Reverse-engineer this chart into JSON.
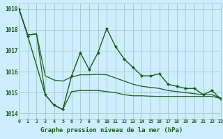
{
  "title": "Graphe pression niveau de la mer (hPa)",
  "bg_color": "#cceeff",
  "grid_color": "#aacccc",
  "line_color": "#1a5c1a",
  "xlim": [
    0,
    23
  ],
  "ylim": [
    1013.75,
    1019.25
  ],
  "yticks": [
    1014,
    1015,
    1016,
    1017,
    1018,
    1019
  ],
  "main_x": [
    0,
    1,
    3,
    4,
    5,
    6,
    7,
    8,
    9,
    10,
    11,
    12,
    13,
    14,
    15,
    16,
    17,
    18,
    19,
    20,
    21,
    22,
    23
  ],
  "main_y": [
    1019.0,
    1017.7,
    1014.9,
    1014.4,
    1014.2,
    1015.8,
    1016.9,
    1016.1,
    1016.9,
    1018.05,
    1017.2,
    1016.6,
    1016.2,
    1015.8,
    1015.8,
    1015.9,
    1015.4,
    1015.3,
    1015.2,
    1015.2,
    1014.9,
    1015.1,
    1014.7
  ],
  "upper_x": [
    0,
    1,
    2,
    3,
    4,
    5,
    6,
    7,
    8,
    9,
    10,
    11,
    12,
    13,
    14,
    15,
    16,
    17,
    18,
    19,
    20,
    21,
    22,
    23
  ],
  "upper_y": [
    1019.0,
    1017.75,
    1017.8,
    1015.8,
    1015.6,
    1015.55,
    1015.75,
    1015.85,
    1015.85,
    1015.87,
    1015.85,
    1015.7,
    1015.55,
    1015.4,
    1015.3,
    1015.25,
    1015.2,
    1015.1,
    1015.05,
    1015.0,
    1014.95,
    1014.9,
    1014.9,
    1014.75
  ],
  "lower_x": [
    0,
    1,
    2,
    3,
    4,
    5,
    6,
    7,
    8,
    9,
    10,
    11,
    12,
    13,
    14,
    15,
    16,
    17,
    18,
    19,
    20,
    21,
    22,
    23
  ],
  "lower_y": [
    1019.0,
    1017.75,
    1017.8,
    1014.9,
    1014.4,
    1014.2,
    1015.05,
    1015.1,
    1015.1,
    1015.1,
    1015.05,
    1015.0,
    1014.9,
    1014.85,
    1014.85,
    1014.83,
    1014.82,
    1014.82,
    1014.82,
    1014.82,
    1014.82,
    1014.82,
    1014.82,
    1014.72
  ]
}
